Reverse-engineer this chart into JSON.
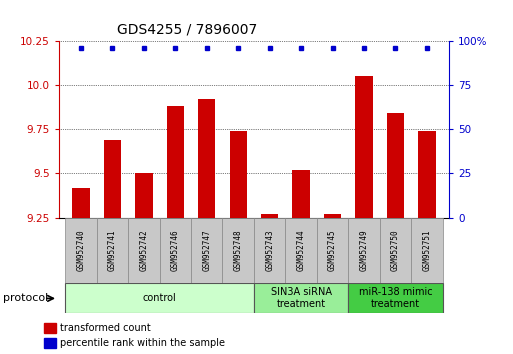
{
  "title": "GDS4255 / 7896007",
  "samples": [
    "GSM952740",
    "GSM952741",
    "GSM952742",
    "GSM952746",
    "GSM952747",
    "GSM952748",
    "GSM952743",
    "GSM952744",
    "GSM952745",
    "GSM952749",
    "GSM952750",
    "GSM952751"
  ],
  "transformed_counts": [
    9.42,
    9.69,
    9.5,
    9.88,
    9.92,
    9.74,
    9.27,
    9.52,
    9.27,
    10.05,
    9.84,
    9.74
  ],
  "percentile_ranks": [
    100,
    100,
    100,
    100,
    100,
    100,
    100,
    100,
    100,
    100,
    100,
    100
  ],
  "y_min": 9.25,
  "y_max": 10.25,
  "y_ticks": [
    9.25,
    9.5,
    9.75,
    10.0,
    10.25
  ],
  "y2_ticks_vals": [
    0,
    25,
    50,
    75,
    100
  ],
  "y2_ticks_labels": [
    "0",
    "25",
    "50",
    "75",
    "100%"
  ],
  "bar_color": "#cc0000",
  "dot_color": "#0000cc",
  "protocol_groups": [
    {
      "label": "control",
      "start": 0,
      "end": 5,
      "color": "#ccffcc"
    },
    {
      "label": "SIN3A siRNA\ntreatment",
      "start": 6,
      "end": 8,
      "color": "#99ee99"
    },
    {
      "label": "miR-138 mimic\ntreatment",
      "start": 9,
      "end": 11,
      "color": "#44cc44"
    }
  ],
  "legend_tc_label": "transformed count",
  "legend_pr_label": "percentile rank within the sample",
  "xlabel_protocol": "protocol",
  "title_fontsize": 10,
  "tick_fontsize": 7.5,
  "sample_fontsize": 5.5,
  "proto_fontsize": 7,
  "legend_fontsize": 7
}
